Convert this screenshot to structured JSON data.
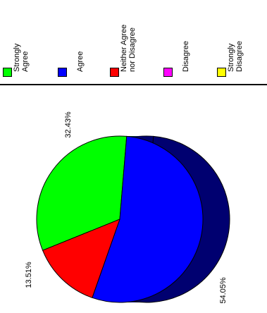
{
  "chart_data": {
    "type": "pie",
    "title": "",
    "legend_position": "top",
    "categories": [
      "Strongly Agree",
      "Agree",
      "Neither Agree nor Disagree",
      "Disagree",
      "Strongly Disagree"
    ],
    "legend_labels": [
      "Strongly\nAgree",
      "Agree",
      "Neither Agree\nnor Disagree",
      "Disagree",
      "Strongly\nDisagree"
    ],
    "values": [
      32.43,
      54.05,
      13.51,
      0,
      0
    ],
    "value_labels": [
      "32.43%",
      "54.05%",
      "13.51%",
      "",
      ""
    ],
    "colors": [
      "#00ff00",
      "#0000ff",
      "#ff0000",
      "#ff00ff",
      "#ffff00"
    ],
    "shadow_colors": [
      "#006400",
      "#000070",
      "#700000",
      "#700070",
      "#707000"
    ]
  }
}
